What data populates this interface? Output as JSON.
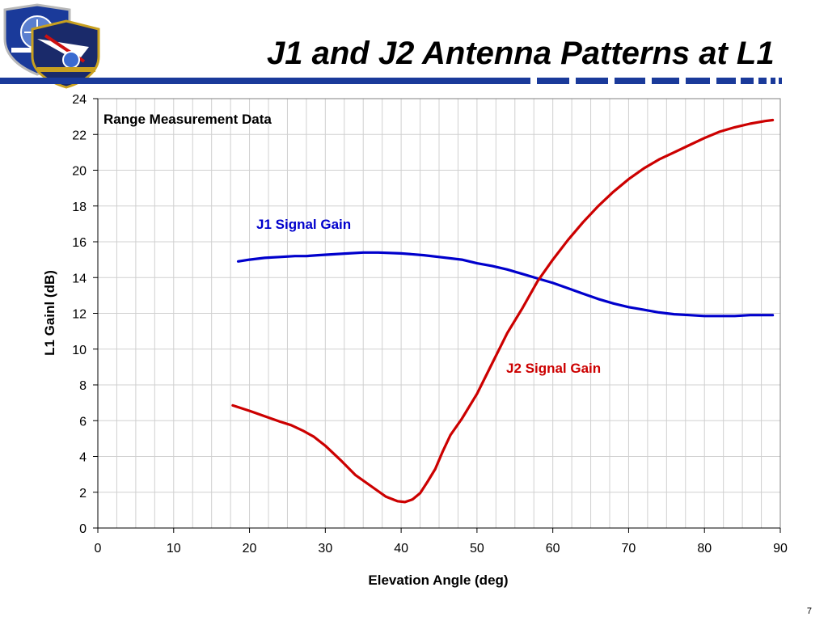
{
  "slide": {
    "title": "J1 and J2 Antenna Patterns at L1",
    "page_number": "7",
    "bar_color": "#1a3a9a"
  },
  "chart_data": {
    "type": "line",
    "title": "",
    "xlabel": "Elevation Angle (deg)",
    "ylabel": "L1 Gainl (dB)",
    "xlim": [
      0,
      90
    ],
    "ylim": [
      0,
      24
    ],
    "x_ticks": [
      0,
      10,
      20,
      30,
      40,
      50,
      60,
      70,
      80,
      90
    ],
    "y_ticks": [
      0,
      2,
      4,
      6,
      8,
      10,
      12,
      14,
      16,
      18,
      20,
      22,
      24
    ],
    "grid": true,
    "annotations": [
      {
        "text": "Range Measurement Data",
        "color": "#000000"
      },
      {
        "text": "J1 Signal Gain",
        "color": "#0000cc"
      },
      {
        "text": "J2 Signal Gain",
        "color": "#cc0000"
      }
    ],
    "series": [
      {
        "color": "#0000cc",
        "x": [
          18.5,
          20,
          22,
          24,
          26,
          27.5,
          29,
          31,
          33,
          35,
          37,
          40,
          43,
          45,
          48,
          50,
          52,
          54,
          56,
          58,
          60,
          62,
          64,
          66,
          68,
          70,
          72,
          74,
          76,
          78,
          80,
          82,
          84,
          86,
          88,
          89
        ],
        "y": [
          14.9,
          15.0,
          15.1,
          15.15,
          15.2,
          15.2,
          15.25,
          15.3,
          15.35,
          15.4,
          15.4,
          15.35,
          15.25,
          15.15,
          15.0,
          14.8,
          14.65,
          14.45,
          14.2,
          13.95,
          13.7,
          13.4,
          13.1,
          12.8,
          12.55,
          12.35,
          12.2,
          12.05,
          11.95,
          11.9,
          11.85,
          11.85,
          11.85,
          11.9,
          11.9,
          11.9
        ]
      },
      {
        "color": "#cc0000",
        "x": [
          17.8,
          20,
          22,
          24,
          25.5,
          27,
          28.5,
          30,
          32,
          34,
          36,
          38,
          39.5,
          40.5,
          41.5,
          42.5,
          43.5,
          44.5,
          45.5,
          46.5,
          48,
          50,
          52,
          54,
          56,
          58,
          60,
          62,
          64,
          66,
          68,
          70,
          72,
          74,
          76,
          78,
          80,
          82,
          84,
          86,
          88,
          89
        ],
        "y": [
          6.85,
          6.55,
          6.25,
          5.95,
          5.75,
          5.45,
          5.1,
          4.6,
          3.8,
          2.95,
          2.35,
          1.75,
          1.5,
          1.45,
          1.6,
          1.95,
          2.6,
          3.3,
          4.3,
          5.2,
          6.1,
          7.5,
          9.2,
          10.9,
          12.3,
          13.8,
          15.0,
          16.1,
          17.1,
          18.0,
          18.8,
          19.5,
          20.1,
          20.6,
          21.0,
          21.4,
          21.8,
          22.15,
          22.4,
          22.6,
          22.75,
          22.8
        ]
      }
    ]
  }
}
